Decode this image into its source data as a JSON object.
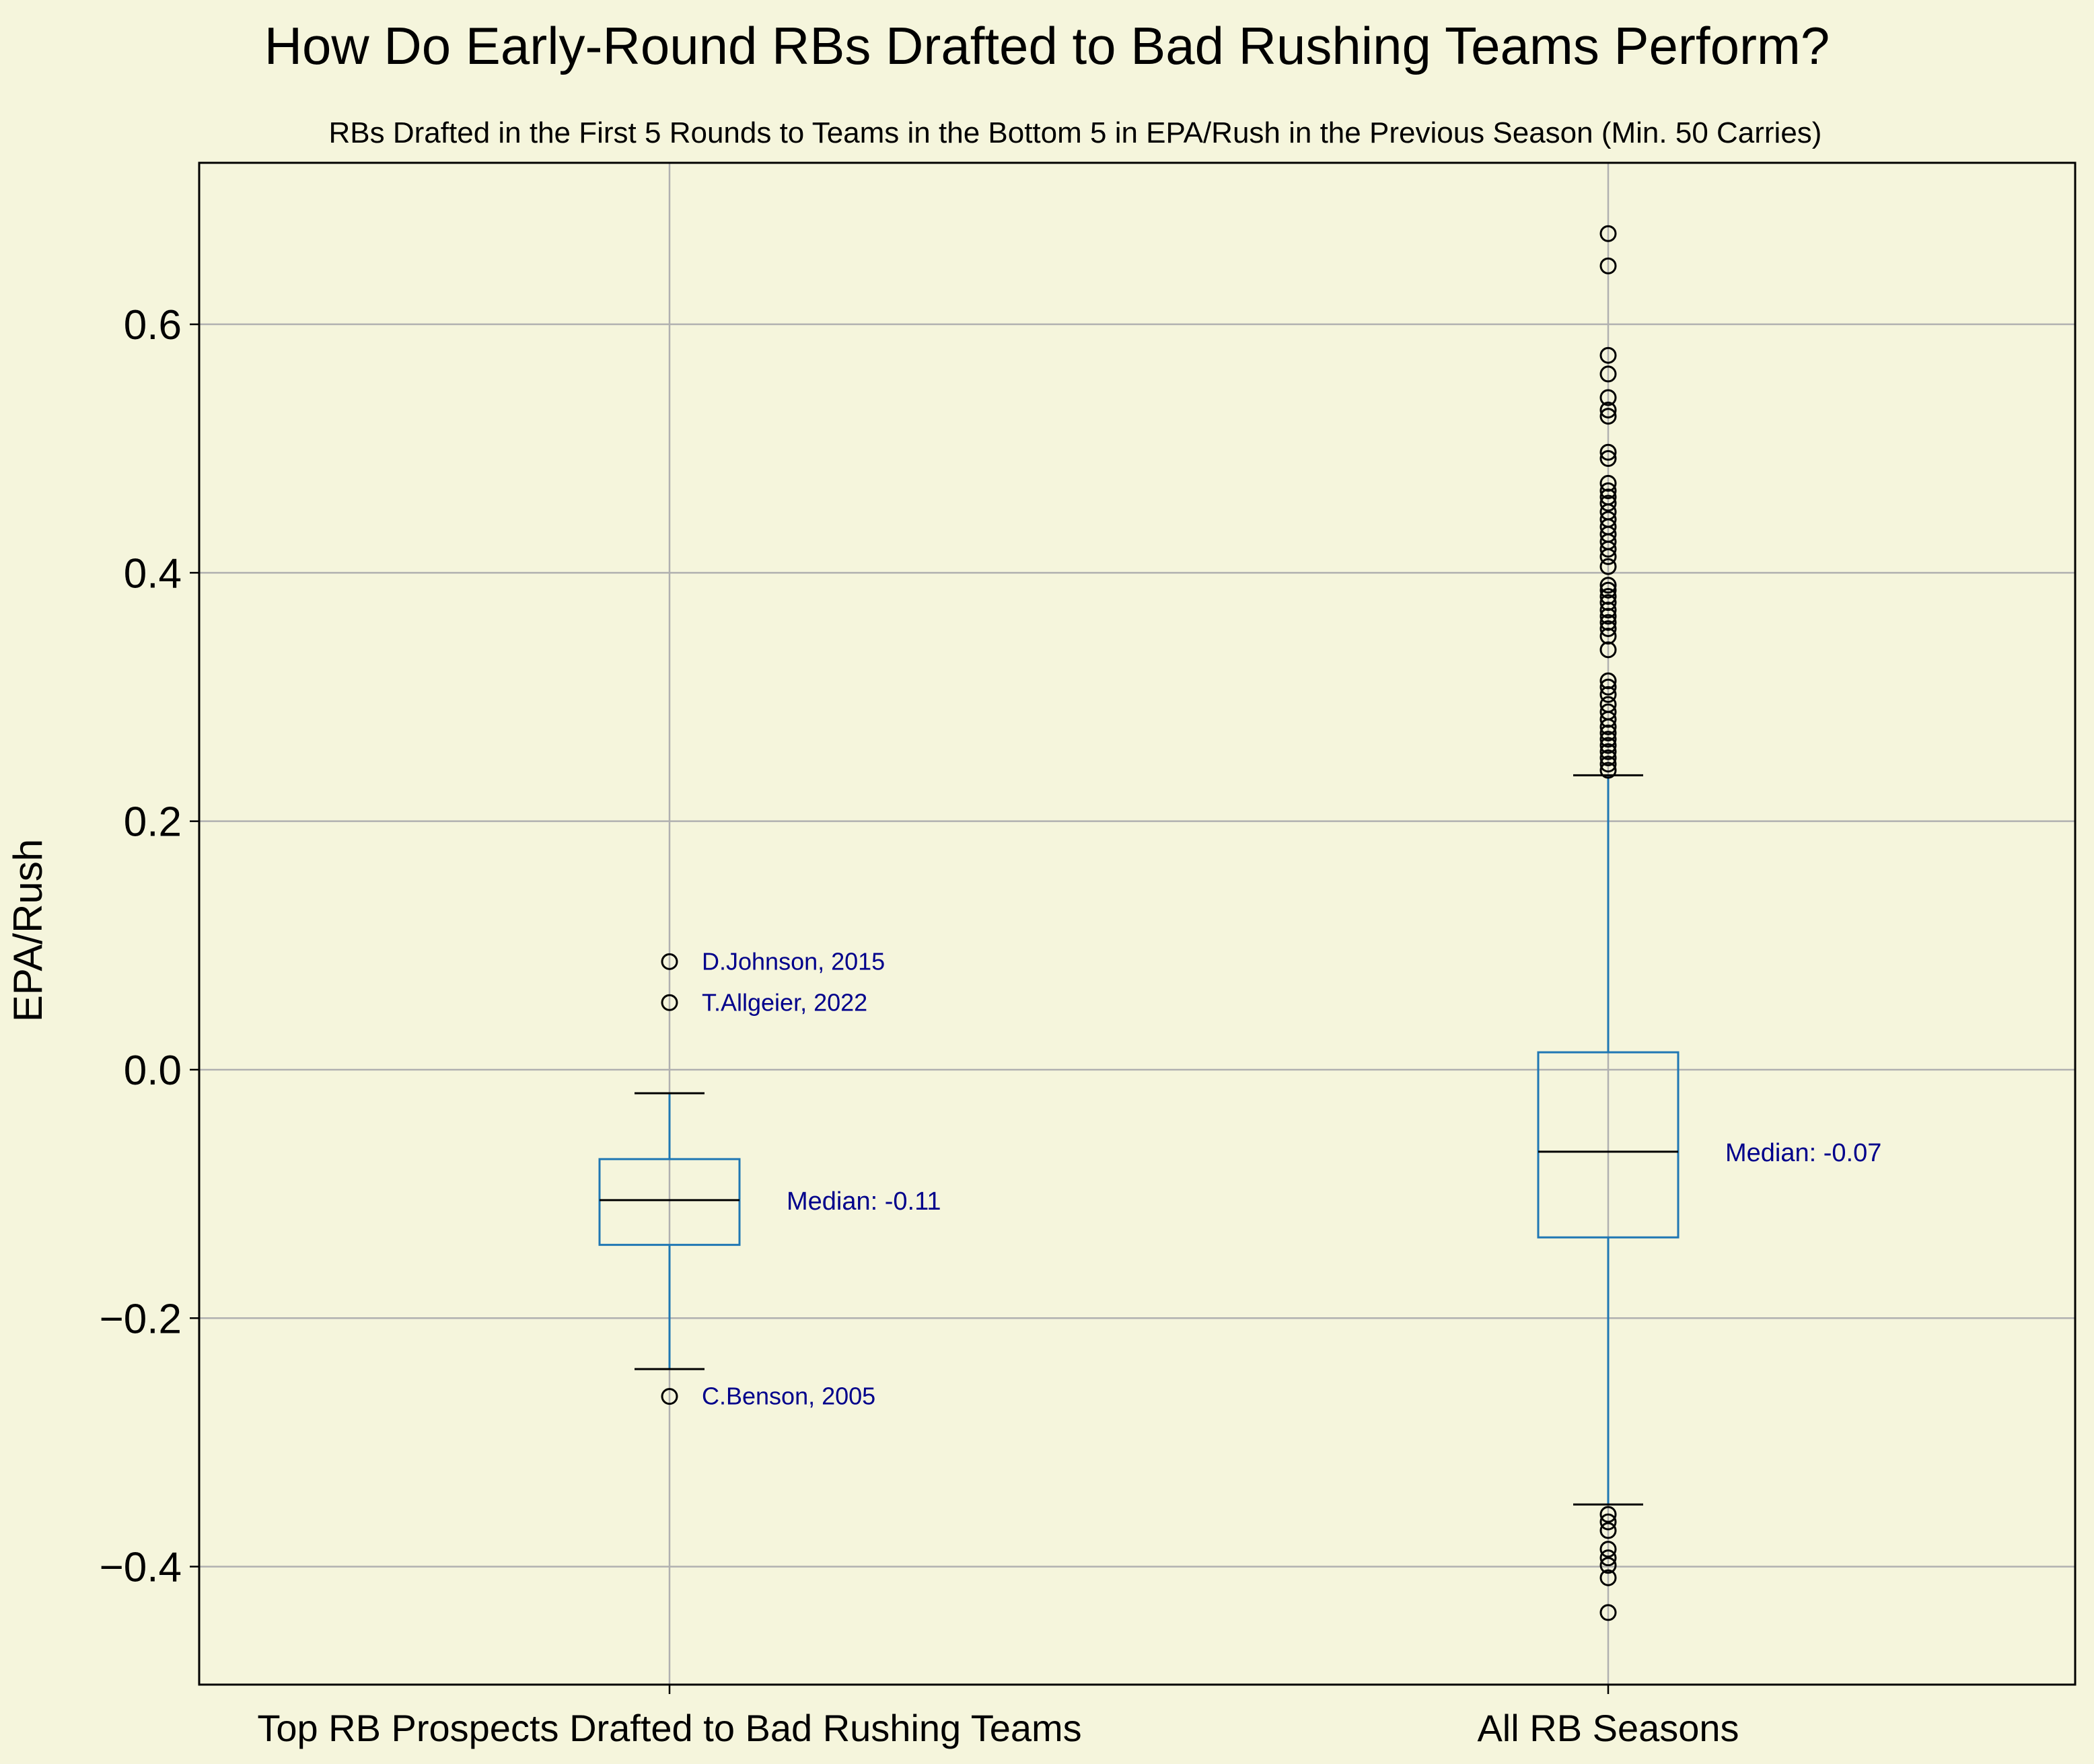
{
  "colors": {
    "background": "#f5f5dc",
    "box": "#1f77b4",
    "median_line": "#000000",
    "annotation": "#00008b",
    "grid": "#b0b0b0",
    "outlier": "#000000"
  },
  "chart_data": {
    "type": "boxplot",
    "title": "How Do Early-Round RBs Drafted to Bad Rushing Teams Perform?",
    "subtitle": "RBs Drafted in the First 5 Rounds to Teams in the Bottom 5 in EPA/Rush in the Previous Season (Min. 50 Carries)",
    "xlabel": "",
    "ylabel": "EPA/Rush",
    "ylim": [
      -0.495,
      0.73
    ],
    "yticks": [
      -0.4,
      -0.2,
      0.0,
      0.2,
      0.4,
      0.6
    ],
    "ytick_labels": [
      "−0.4",
      "−0.2",
      "0.0",
      "0.2",
      "0.4",
      "0.6"
    ],
    "grid": true,
    "categories": [
      "Top RB Prospects Drafted to Bad Rushing Teams",
      "All RB Seasons"
    ],
    "boxes": [
      {
        "name": "Top RB Prospects Drafted to Bad Rushing Teams",
        "whisker_low": -0.241,
        "q1": -0.141,
        "median": -0.105,
        "q3": -0.072,
        "whisker_high": -0.019,
        "outliers": [
          0.087,
          0.054,
          -0.263
        ],
        "median_label": "Median: -0.11"
      },
      {
        "name": "All RB Seasons",
        "whisker_low": -0.35,
        "q1": -0.135,
        "median": -0.066,
        "q3": 0.014,
        "whisker_high": 0.237,
        "outliers": [
          0.673,
          0.647,
          0.575,
          0.56,
          0.541,
          0.531,
          0.526,
          0.497,
          0.492,
          0.472,
          0.466,
          0.461,
          0.456,
          0.449,
          0.443,
          0.437,
          0.431,
          0.425,
          0.419,
          0.413,
          0.405,
          0.39,
          0.386,
          0.381,
          0.376,
          0.37,
          0.365,
          0.36,
          0.355,
          0.349,
          0.338,
          0.313,
          0.308,
          0.302,
          0.294,
          0.288,
          0.282,
          0.276,
          0.271,
          0.266,
          0.261,
          0.256,
          0.251,
          0.246,
          0.241,
          -0.358,
          -0.364,
          -0.371,
          -0.386,
          -0.393,
          -0.399,
          -0.409,
          -0.437
        ],
        "median_label": "Median: -0.07"
      }
    ],
    "annotations": [
      {
        "text": "D.Johnson, 2015",
        "box": 0,
        "y": 0.087
      },
      {
        "text": "T.Allgeier, 2022",
        "box": 0,
        "y": 0.054
      },
      {
        "text": "C.Benson, 2005",
        "box": 0,
        "y": -0.263
      }
    ]
  }
}
